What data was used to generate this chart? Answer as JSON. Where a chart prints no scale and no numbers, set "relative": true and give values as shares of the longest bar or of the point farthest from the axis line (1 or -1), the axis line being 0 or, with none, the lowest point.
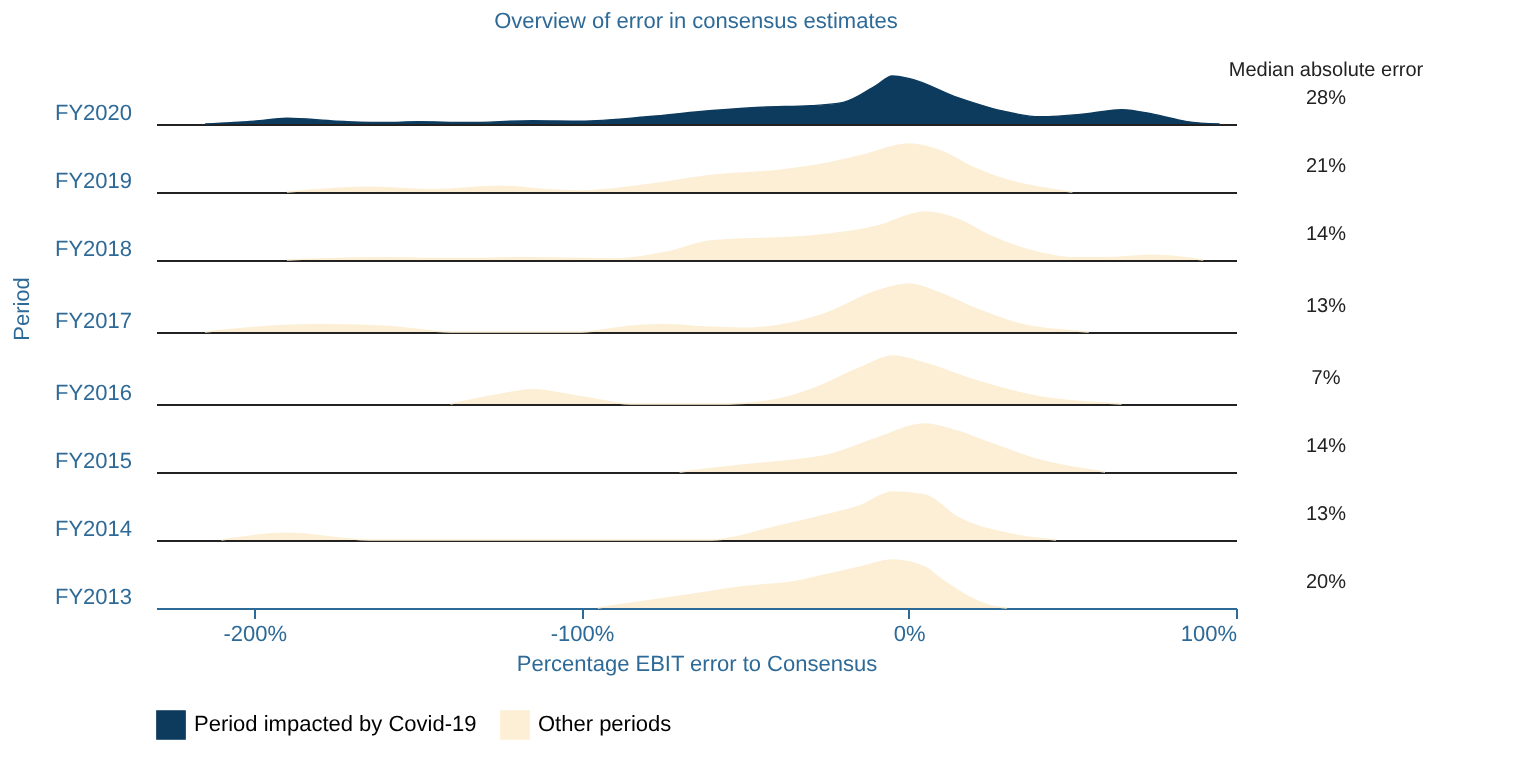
{
  "chart_data": [
    {
      "type": "area",
      "relative": true,
      "title": "Overview of error in consensus estimates",
      "ylabel": "FY2020",
      "xlim": [
        -230,
        100
      ],
      "tick_labels": false,
      "legend": "bottom",
      "annotations": [
        "Median absolute error",
        "28%"
      ],
      "series": [
        {
          "name": "Period impacted by Covid-19",
          "color": "#0d3b5e",
          "x": [
            -215,
            -200,
            -190,
            -175,
            -160,
            -150,
            -135,
            -115,
            -100,
            -80,
            -60,
            -45,
            -30,
            -20,
            -10,
            -5,
            0,
            15,
            30,
            40,
            55,
            65,
            75,
            85,
            95
          ],
          "values": [
            0,
            0.06,
            0.12,
            0.06,
            0.03,
            0.05,
            0.03,
            0.07,
            0.06,
            0.15,
            0.28,
            0.35,
            0.38,
            0.45,
            0.8,
            1.0,
            0.95,
            0.55,
            0.25,
            0.15,
            0.22,
            0.3,
            0.2,
            0.05,
            0
          ]
        }
      ]
    },
    {
      "type": "area",
      "relative": true,
      "ylabel": "FY2019",
      "xlim": [
        -230,
        100
      ],
      "tick_labels": false,
      "legend": "bottom",
      "annotations": [
        "21%"
      ],
      "series": [
        {
          "name": "Other periods",
          "color": "#fcefd6",
          "x": [
            -190,
            -165,
            -145,
            -125,
            -110,
            -100,
            -80,
            -60,
            -40,
            -25,
            -15,
            0,
            10,
            20,
            30,
            40,
            50
          ],
          "values": [
            0,
            0.1,
            0.05,
            0.12,
            0.05,
            0.02,
            0.15,
            0.35,
            0.45,
            0.6,
            0.75,
            1.0,
            0.85,
            0.5,
            0.25,
            0.1,
            0
          ]
        }
      ]
    },
    {
      "type": "area",
      "relative": true,
      "ylabel": "FY2018",
      "xlim": [
        -230,
        100
      ],
      "tick_labels": false,
      "legend": "bottom",
      "annotations": [
        "14%"
      ],
      "series": [
        {
          "name": "Other periods",
          "color": "#fcefd6",
          "x": [
            -190,
            -160,
            -140,
            -115,
            -90,
            -75,
            -60,
            -30,
            -10,
            5,
            15,
            25,
            40,
            50,
            60,
            75,
            90
          ],
          "values": [
            0,
            0.05,
            0.03,
            0.05,
            0.02,
            0.15,
            0.4,
            0.5,
            0.7,
            1.0,
            0.85,
            0.5,
            0.15,
            0.05,
            0.05,
            0.1,
            0
          ]
        }
      ]
    },
    {
      "type": "area",
      "relative": true,
      "title": "Period",
      "ylabel": "FY2017",
      "xlim": [
        -230,
        100
      ],
      "tick_labels": false,
      "legend": "bottom",
      "annotations": [
        "13%"
      ],
      "series": [
        {
          "name": "Other periods",
          "color": "#fcefd6",
          "x": [
            -215,
            -195,
            -180,
            -160,
            -140,
            -100,
            -85,
            -75,
            -60,
            -50,
            -35,
            -25,
            -10,
            0,
            10,
            20,
            35,
            55
          ],
          "values": [
            0,
            0.12,
            0.15,
            0.12,
            0,
            0,
            0.12,
            0.15,
            0.1,
            0.08,
            0.2,
            0.4,
            0.85,
            1.0,
            0.8,
            0.5,
            0.15,
            0
          ]
        }
      ]
    },
    {
      "type": "area",
      "relative": true,
      "ylabel": "FY2016",
      "xlim": [
        -230,
        100
      ],
      "tick_labels": false,
      "legend": "bottom",
      "annotations": [
        "7%"
      ],
      "series": [
        {
          "name": "Other periods",
          "color": "#fcefd6",
          "x": [
            -140,
            -125,
            -115,
            -100,
            -85,
            -55,
            -40,
            -30,
            -15,
            -5,
            5,
            20,
            40,
            65
          ],
          "values": [
            0,
            0.2,
            0.3,
            0.15,
            0,
            0,
            0.1,
            0.3,
            0.75,
            1.0,
            0.85,
            0.5,
            0.15,
            0
          ]
        }
      ]
    },
    {
      "type": "area",
      "relative": true,
      "ylabel": "FY2015",
      "xlim": [
        -230,
        100
      ],
      "tick_labels": false,
      "legend": "bottom",
      "annotations": [
        "14%"
      ],
      "series": [
        {
          "name": "Other periods",
          "color": "#fcefd6",
          "x": [
            -70,
            -50,
            -35,
            -25,
            -10,
            5,
            15,
            25,
            40,
            60
          ],
          "values": [
            0,
            0.15,
            0.25,
            0.35,
            0.7,
            1.0,
            0.85,
            0.6,
            0.25,
            0
          ]
        }
      ]
    },
    {
      "type": "area",
      "relative": true,
      "ylabel": "FY2014",
      "xlim": [
        -230,
        100
      ],
      "tick_labels": false,
      "legend": "bottom",
      "annotations": [
        "13%"
      ],
      "series": [
        {
          "name": "Other periods",
          "color": "#fcefd6",
          "x": [
            -210,
            -190,
            -165,
            -60,
            -40,
            -25,
            -15,
            -5,
            5,
            15,
            30,
            45
          ],
          "values": [
            0,
            0.14,
            0,
            0,
            0.29,
            0.53,
            0.71,
            1.0,
            0.94,
            0.47,
            0.14,
            0
          ]
        }
      ]
    },
    {
      "type": "area",
      "relative": true,
      "ylabel": "FY2013",
      "xlabel": "Percentage EBIT error to Consensus",
      "xlim": [
        -230,
        100
      ],
      "xticks": [
        {
          "value": -200,
          "label": "-200%"
        },
        {
          "value": -100,
          "label": "-100%"
        },
        {
          "value": 0,
          "label": "0%"
        },
        {
          "value": 100,
          "label": "100%"
        }
      ],
      "tick_labels": "x",
      "legend": "bottom",
      "annotations": [
        "20%"
      ],
      "series": [
        {
          "name": "Other periods",
          "color": "#fcefd6",
          "x": [
            -95,
            -75,
            -60,
            -50,
            -35,
            -25,
            -15,
            -5,
            5,
            10,
            18,
            25,
            30
          ],
          "values": [
            0,
            0.2,
            0.35,
            0.45,
            0.55,
            0.7,
            0.85,
            1.0,
            0.85,
            0.6,
            0.25,
            0.05,
            0
          ]
        }
      ]
    }
  ]
}
